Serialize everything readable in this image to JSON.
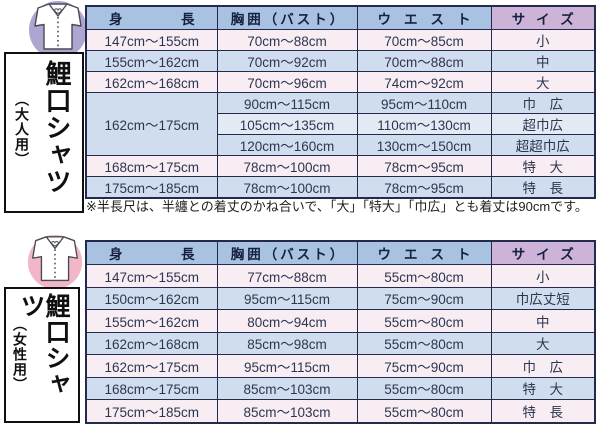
{
  "colors": {
    "header_blue": "#a9c2e2",
    "header_purple": "#cdb3d7",
    "row_pink": "#f7edf2",
    "row_blue": "#cfddee",
    "row_pale": "#e4eaf4",
    "table_border": "#232a4d",
    "adult_icon_circle": "#aea6cf",
    "women_icon_circle": "#f1b7c6"
  },
  "note": "※半長尺は、半纏との着丈のかね合いで、「大」「特大」「巾広」とも着丈は90cmです。",
  "tables": [
    {
      "sidebar": {
        "title": "鯉口シャツ",
        "subtitle": "（大人用）"
      },
      "headers": [
        "身長",
        "胸囲（バスト）",
        "ウエスト",
        "サイズ"
      ],
      "rows": [
        {
          "cells": [
            {
              "text": "147cm～155cm",
              "bg": "pink"
            },
            {
              "text": "70cm～88cm",
              "bg": "pink"
            },
            {
              "text": "70cm～85cm",
              "bg": "pink"
            },
            {
              "text": "小",
              "bg": "pink"
            }
          ]
        },
        {
          "cells": [
            {
              "text": "155cm～162cm",
              "bg": "blue"
            },
            {
              "text": "70cm～92cm",
              "bg": "blue"
            },
            {
              "text": "70cm～88cm",
              "bg": "blue"
            },
            {
              "text": "中",
              "bg": "blue"
            }
          ]
        },
        {
          "cells": [
            {
              "text": "162cm～168cm",
              "bg": "pink"
            },
            {
              "text": "70cm～96cm",
              "bg": "pink"
            },
            {
              "text": "74cm～92cm",
              "bg": "pink"
            },
            {
              "text": "大",
              "bg": "pink"
            }
          ]
        },
        {
          "cells": [
            {
              "text": "162cm～175cm",
              "bg": "blue",
              "rowspan": 3
            },
            {
              "text": "90cm～115cm",
              "bg": "blue"
            },
            {
              "text": "95cm～110cm",
              "bg": "blue"
            },
            {
              "text": "巾　広",
              "bg": "blue"
            }
          ]
        },
        {
          "cells": [
            {
              "text": "105cm～135cm",
              "bg": "pale"
            },
            {
              "text": "110cm～130cm",
              "bg": "pale"
            },
            {
              "text": "超巾広",
              "bg": "pale"
            }
          ]
        },
        {
          "cells": [
            {
              "text": "120cm～160cm",
              "bg": "blue"
            },
            {
              "text": "130cm～150cm",
              "bg": "blue"
            },
            {
              "text": "超超巾広",
              "bg": "blue"
            }
          ]
        },
        {
          "cells": [
            {
              "text": "168cm～175cm",
              "bg": "pink"
            },
            {
              "text": "78cm～100cm",
              "bg": "pink"
            },
            {
              "text": "78cm～95cm",
              "bg": "pink"
            },
            {
              "text": "特　大",
              "bg": "pink"
            }
          ]
        },
        {
          "cells": [
            {
              "text": "175cm～185cm",
              "bg": "blue"
            },
            {
              "text": "78cm～100cm",
              "bg": "blue"
            },
            {
              "text": "78cm～95cm",
              "bg": "blue"
            },
            {
              "text": "特　長",
              "bg": "blue"
            }
          ]
        }
      ]
    },
    {
      "sidebar": {
        "title": "鯉口シャツ",
        "subtitle": "（女性用）"
      },
      "headers": [
        "身長",
        "胸囲（バスト）",
        "ウエスト",
        "サイズ"
      ],
      "rows": [
        {
          "cells": [
            {
              "text": "147cm～155cm",
              "bg": "pink"
            },
            {
              "text": "77cm～88cm",
              "bg": "pink"
            },
            {
              "text": "55cm～80cm",
              "bg": "pink"
            },
            {
              "text": "小",
              "bg": "pink"
            }
          ]
        },
        {
          "cells": [
            {
              "text": "150cm～162cm",
              "bg": "blue"
            },
            {
              "text": "95cm～115cm",
              "bg": "blue"
            },
            {
              "text": "75cm～90cm",
              "bg": "blue"
            },
            {
              "text": "巾広丈短",
              "bg": "blue"
            }
          ]
        },
        {
          "cells": [
            {
              "text": "155cm～162cm",
              "bg": "pink"
            },
            {
              "text": "80cm～94cm",
              "bg": "pink"
            },
            {
              "text": "55cm～80cm",
              "bg": "pink"
            },
            {
              "text": "中",
              "bg": "pink"
            }
          ]
        },
        {
          "cells": [
            {
              "text": "162cm～168cm",
              "bg": "blue"
            },
            {
              "text": "85cm～98cm",
              "bg": "blue"
            },
            {
              "text": "55cm～80cm",
              "bg": "blue"
            },
            {
              "text": "大",
              "bg": "blue"
            }
          ]
        },
        {
          "cells": [
            {
              "text": "162cm～175cm",
              "bg": "pink"
            },
            {
              "text": "95cm～115cm",
              "bg": "pink"
            },
            {
              "text": "75cm～90cm",
              "bg": "pink"
            },
            {
              "text": "巾　広",
              "bg": "pink"
            }
          ]
        },
        {
          "cells": [
            {
              "text": "168cm～175cm",
              "bg": "blue"
            },
            {
              "text": "85cm～103cm",
              "bg": "blue"
            },
            {
              "text": "55cm～80cm",
              "bg": "blue"
            },
            {
              "text": "特　大",
              "bg": "blue"
            }
          ]
        },
        {
          "cells": [
            {
              "text": "175cm～185cm",
              "bg": "pink"
            },
            {
              "text": "85cm～103cm",
              "bg": "pink"
            },
            {
              "text": "55cm～80cm",
              "bg": "pink"
            },
            {
              "text": "特　長",
              "bg": "pink"
            }
          ]
        }
      ]
    }
  ]
}
